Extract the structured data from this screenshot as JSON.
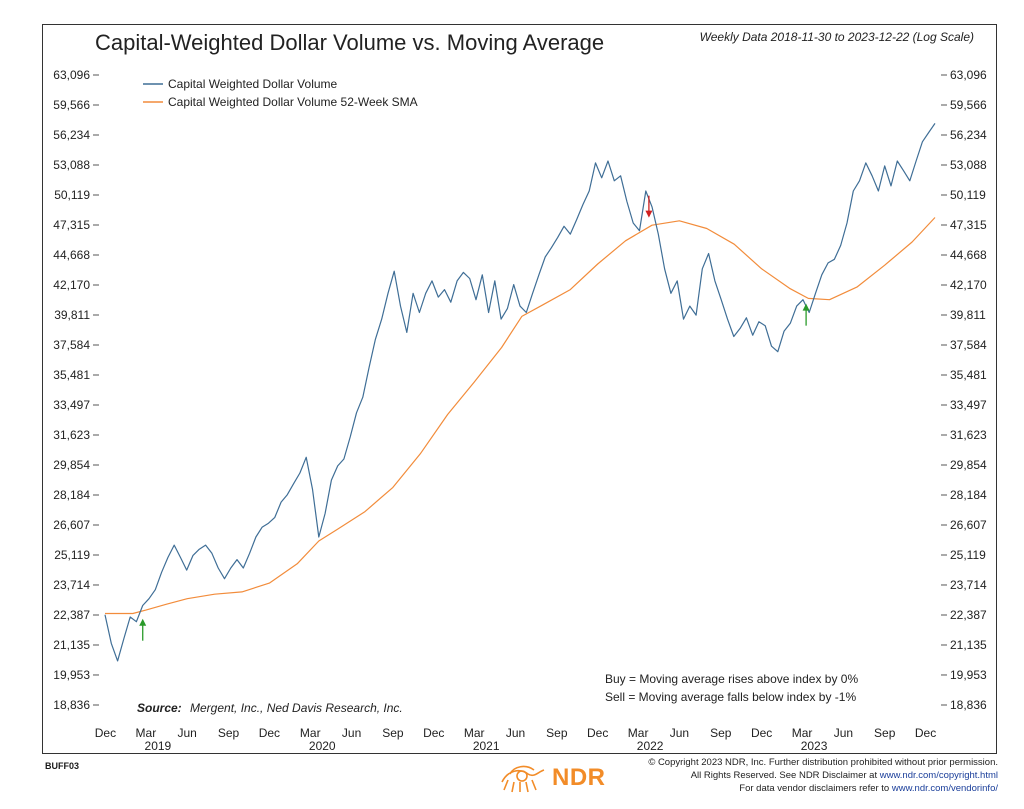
{
  "chart_data": {
    "type": "line",
    "title": "Capital-Weighted Dollar Volume vs. Moving Average",
    "subtitle": "Weekly Data 2018-11-30 to 2023-12-22 (Log Scale)",
    "y_scale": "log",
    "ylim": [
      18000,
      65000
    ],
    "xlim": [
      "2018-11-30",
      "2023-12-22"
    ],
    "y_ticks": [
      "63,096",
      "59,566",
      "56,234",
      "53,088",
      "50,119",
      "47,315",
      "44,668",
      "42,170",
      "39,811",
      "37,584",
      "35,481",
      "33,497",
      "31,623",
      "29,854",
      "28,184",
      "26,607",
      "25,119",
      "23,714",
      "22,387",
      "21,135",
      "19,953",
      "18,836"
    ],
    "y_tick_values": [
      63096,
      59566,
      56234,
      53088,
      50119,
      47315,
      44668,
      42170,
      39811,
      37584,
      35481,
      33497,
      31623,
      29854,
      28184,
      26607,
      25119,
      23714,
      22387,
      21135,
      19953,
      18836
    ],
    "x_ticks": [
      {
        "label": "Dec",
        "date": "2018-12-01"
      },
      {
        "label": "Mar",
        "date": "2019-03-01"
      },
      {
        "label": "Jun",
        "date": "2019-06-01"
      },
      {
        "label": "Sep",
        "date": "2019-09-01"
      },
      {
        "label": "Dec",
        "date": "2019-12-01"
      },
      {
        "label": "Mar",
        "date": "2020-03-01"
      },
      {
        "label": "Jun",
        "date": "2020-06-01"
      },
      {
        "label": "Sep",
        "date": "2020-09-01"
      },
      {
        "label": "Dec",
        "date": "2020-12-01"
      },
      {
        "label": "Mar",
        "date": "2021-03-01"
      },
      {
        "label": "Jun",
        "date": "2021-06-01"
      },
      {
        "label": "Sep",
        "date": "2021-09-01"
      },
      {
        "label": "Dec",
        "date": "2021-12-01"
      },
      {
        "label": "Mar",
        "date": "2022-03-01"
      },
      {
        "label": "Jun",
        "date": "2022-06-01"
      },
      {
        "label": "Sep",
        "date": "2022-09-01"
      },
      {
        "label": "Dec",
        "date": "2022-12-01"
      },
      {
        "label": "Mar",
        "date": "2023-03-01"
      },
      {
        "label": "Jun",
        "date": "2023-06-01"
      },
      {
        "label": "Sep",
        "date": "2023-09-01"
      },
      {
        "label": "Dec",
        "date": "2023-12-01"
      }
    ],
    "year_labels": [
      {
        "label": "2019",
        "date": "2019-03-01"
      },
      {
        "label": "2020",
        "date": "2020-03-01"
      },
      {
        "label": "2021",
        "date": "2021-03-01"
      },
      {
        "label": "2022",
        "date": "2022-03-01"
      },
      {
        "label": "2023",
        "date": "2023-03-01"
      }
    ],
    "series": [
      {
        "name": "Capital Weighted Dollar Volume",
        "color": "#3f6e96",
        "points": [
          [
            "2018-11-30",
            22400
          ],
          [
            "2018-12-14",
            21200
          ],
          [
            "2018-12-28",
            20500
          ],
          [
            "2019-01-11",
            21400
          ],
          [
            "2019-01-25",
            22300
          ],
          [
            "2019-02-08",
            22100
          ],
          [
            "2019-02-22",
            22800
          ],
          [
            "2019-03-08",
            23100
          ],
          [
            "2019-03-22",
            23500
          ],
          [
            "2019-04-05",
            24300
          ],
          [
            "2019-04-19",
            25000
          ],
          [
            "2019-05-03",
            25600
          ],
          [
            "2019-05-17",
            25000
          ],
          [
            "2019-05-31",
            24400
          ],
          [
            "2019-06-14",
            25100
          ],
          [
            "2019-06-28",
            25400
          ],
          [
            "2019-07-12",
            25600
          ],
          [
            "2019-07-26",
            25200
          ],
          [
            "2019-08-09",
            24500
          ],
          [
            "2019-08-23",
            24000
          ],
          [
            "2019-09-06",
            24500
          ],
          [
            "2019-09-20",
            24900
          ],
          [
            "2019-10-04",
            24500
          ],
          [
            "2019-10-18",
            25200
          ],
          [
            "2019-11-01",
            26000
          ],
          [
            "2019-11-15",
            26500
          ],
          [
            "2019-11-29",
            26700
          ],
          [
            "2019-12-13",
            27000
          ],
          [
            "2019-12-27",
            27800
          ],
          [
            "2020-01-10",
            28200
          ],
          [
            "2020-01-24",
            28800
          ],
          [
            "2020-02-07",
            29400
          ],
          [
            "2020-02-21",
            30300
          ],
          [
            "2020-03-06",
            28500
          ],
          [
            "2020-03-20",
            26000
          ],
          [
            "2020-04-03",
            27200
          ],
          [
            "2020-04-17",
            29000
          ],
          [
            "2020-05-01",
            29800
          ],
          [
            "2020-05-15",
            30200
          ],
          [
            "2020-05-29",
            31500
          ],
          [
            "2020-06-12",
            33000
          ],
          [
            "2020-06-26",
            34000
          ],
          [
            "2020-07-10",
            36000
          ],
          [
            "2020-07-24",
            38000
          ],
          [
            "2020-08-07",
            39500
          ],
          [
            "2020-08-21",
            41500
          ],
          [
            "2020-09-04",
            43300
          ],
          [
            "2020-09-18",
            40500
          ],
          [
            "2020-10-02",
            38500
          ],
          [
            "2020-10-16",
            41500
          ],
          [
            "2020-10-30",
            40000
          ],
          [
            "2020-11-13",
            41500
          ],
          [
            "2020-11-27",
            42500
          ],
          [
            "2020-12-11",
            41200
          ],
          [
            "2020-12-25",
            41800
          ],
          [
            "2021-01-08",
            40800
          ],
          [
            "2021-01-22",
            42500
          ],
          [
            "2021-02-05",
            43200
          ],
          [
            "2021-02-19",
            42700
          ],
          [
            "2021-03-05",
            41000
          ],
          [
            "2021-03-19",
            43000
          ],
          [
            "2021-04-02",
            40000
          ],
          [
            "2021-04-16",
            42500
          ],
          [
            "2021-04-30",
            39500
          ],
          [
            "2021-05-14",
            40300
          ],
          [
            "2021-05-28",
            42200
          ],
          [
            "2021-06-11",
            40500
          ],
          [
            "2021-06-25",
            40000
          ],
          [
            "2021-07-09",
            41500
          ],
          [
            "2021-07-23",
            43000
          ],
          [
            "2021-08-06",
            44500
          ],
          [
            "2021-08-20",
            45300
          ],
          [
            "2021-09-03",
            46200
          ],
          [
            "2021-09-17",
            47200
          ],
          [
            "2021-10-01",
            46500
          ],
          [
            "2021-10-15",
            47800
          ],
          [
            "2021-10-29",
            49200
          ],
          [
            "2021-11-12",
            50500
          ],
          [
            "2021-11-26",
            53300
          ],
          [
            "2021-12-10",
            51800
          ],
          [
            "2021-12-24",
            53500
          ],
          [
            "2022-01-07",
            51500
          ],
          [
            "2022-01-21",
            52000
          ],
          [
            "2022-02-04",
            49500
          ],
          [
            "2022-02-18",
            47500
          ],
          [
            "2022-03-04",
            46800
          ],
          [
            "2022-03-18",
            50500
          ],
          [
            "2022-04-01",
            49000
          ],
          [
            "2022-04-15",
            46500
          ],
          [
            "2022-04-29",
            43500
          ],
          [
            "2022-05-13",
            41500
          ],
          [
            "2022-05-27",
            42500
          ],
          [
            "2022-06-10",
            39500
          ],
          [
            "2022-06-24",
            40500
          ],
          [
            "2022-07-08",
            39800
          ],
          [
            "2022-07-22",
            43500
          ],
          [
            "2022-08-05",
            44800
          ],
          [
            "2022-08-19",
            42500
          ],
          [
            "2022-09-02",
            41000
          ],
          [
            "2022-09-16",
            39500
          ],
          [
            "2022-09-30",
            38200
          ],
          [
            "2022-10-14",
            38800
          ],
          [
            "2022-10-28",
            39600
          ],
          [
            "2022-11-11",
            38300
          ],
          [
            "2022-11-25",
            39300
          ],
          [
            "2022-12-09",
            39000
          ],
          [
            "2022-12-23",
            37500
          ],
          [
            "2023-01-06",
            37100
          ],
          [
            "2023-01-20",
            38600
          ],
          [
            "2023-02-03",
            39200
          ],
          [
            "2023-02-17",
            40500
          ],
          [
            "2023-03-03",
            41000
          ],
          [
            "2023-03-17",
            40000
          ],
          [
            "2023-03-31",
            41500
          ],
          [
            "2023-04-14",
            43000
          ],
          [
            "2023-04-28",
            44000
          ],
          [
            "2023-05-12",
            44300
          ],
          [
            "2023-05-26",
            45500
          ],
          [
            "2023-06-09",
            47500
          ],
          [
            "2023-06-23",
            50500
          ],
          [
            "2023-07-07",
            51500
          ],
          [
            "2023-07-21",
            53300
          ],
          [
            "2023-08-04",
            52000
          ],
          [
            "2023-08-18",
            50500
          ],
          [
            "2023-09-01",
            53000
          ],
          [
            "2023-09-15",
            51000
          ],
          [
            "2023-09-29",
            53500
          ],
          [
            "2023-10-13",
            52500
          ],
          [
            "2023-10-27",
            51500
          ],
          [
            "2023-11-10",
            53500
          ],
          [
            "2023-11-24",
            55500
          ],
          [
            "2023-12-08",
            56500
          ],
          [
            "2023-12-22",
            57500
          ]
        ]
      },
      {
        "name": "Capital Weighted Dollar Volume 52-Week SMA",
        "color": "#f28c3b",
        "points": [
          [
            "2018-11-30",
            22450
          ],
          [
            "2019-01-31",
            22450
          ],
          [
            "2019-03-01",
            22600
          ],
          [
            "2019-04-15",
            22850
          ],
          [
            "2019-06-01",
            23100
          ],
          [
            "2019-08-01",
            23300
          ],
          [
            "2019-10-01",
            23400
          ],
          [
            "2019-12-01",
            23800
          ],
          [
            "2020-02-01",
            24700
          ],
          [
            "2020-03-20",
            25800
          ],
          [
            "2020-05-01",
            26400
          ],
          [
            "2020-07-01",
            27300
          ],
          [
            "2020-09-01",
            28600
          ],
          [
            "2020-11-01",
            30500
          ],
          [
            "2021-01-01",
            32900
          ],
          [
            "2021-03-01",
            35000
          ],
          [
            "2021-05-01",
            37400
          ],
          [
            "2021-06-15",
            39700
          ],
          [
            "2021-08-01",
            40600
          ],
          [
            "2021-10-01",
            41800
          ],
          [
            "2021-12-01",
            43900
          ],
          [
            "2022-02-01",
            45900
          ],
          [
            "2022-04-01",
            47300
          ],
          [
            "2022-06-01",
            47700
          ],
          [
            "2022-08-01",
            47000
          ],
          [
            "2022-10-01",
            45600
          ],
          [
            "2022-12-01",
            43500
          ],
          [
            "2023-02-01",
            41900
          ],
          [
            "2023-03-15",
            41100
          ],
          [
            "2023-05-01",
            41000
          ],
          [
            "2023-07-01",
            42000
          ],
          [
            "2023-09-01",
            43800
          ],
          [
            "2023-11-01",
            45800
          ],
          [
            "2023-12-22",
            48000
          ]
        ]
      }
    ],
    "signals": [
      {
        "type": "buy",
        "date": "2019-02-22",
        "value": 22400,
        "color": "#2a9a2a"
      },
      {
        "type": "sell",
        "date": "2022-03-25",
        "value": 47800,
        "color": "#d02020"
      },
      {
        "type": "buy",
        "date": "2023-03-10",
        "value": 41000,
        "color": "#2a9a2a"
      }
    ],
    "notes": [
      "Buy = Moving average rises above index by 0%",
      "Sell = Moving average falls below index by -1%"
    ],
    "source_label": "Source:",
    "source_text": "Mergent, Inc., Ned Davis Research, Inc.",
    "legend_position": "top-left",
    "grid": false
  },
  "footer": {
    "code": "BUFF03",
    "brand": "NDR",
    "copyright_line1": "© Copyright 2023 NDR, Inc. Further distribution prohibited without prior permission.",
    "copyright_line2_prefix": "All Rights Reserved. See NDR Disclaimer at ",
    "copyright_line2_link": "www.ndr.com/copyright.html",
    "copyright_line3_prefix": "For data vendor disclaimers refer to ",
    "copyright_line3_link": "www.ndr.com/vendorinfo/"
  }
}
